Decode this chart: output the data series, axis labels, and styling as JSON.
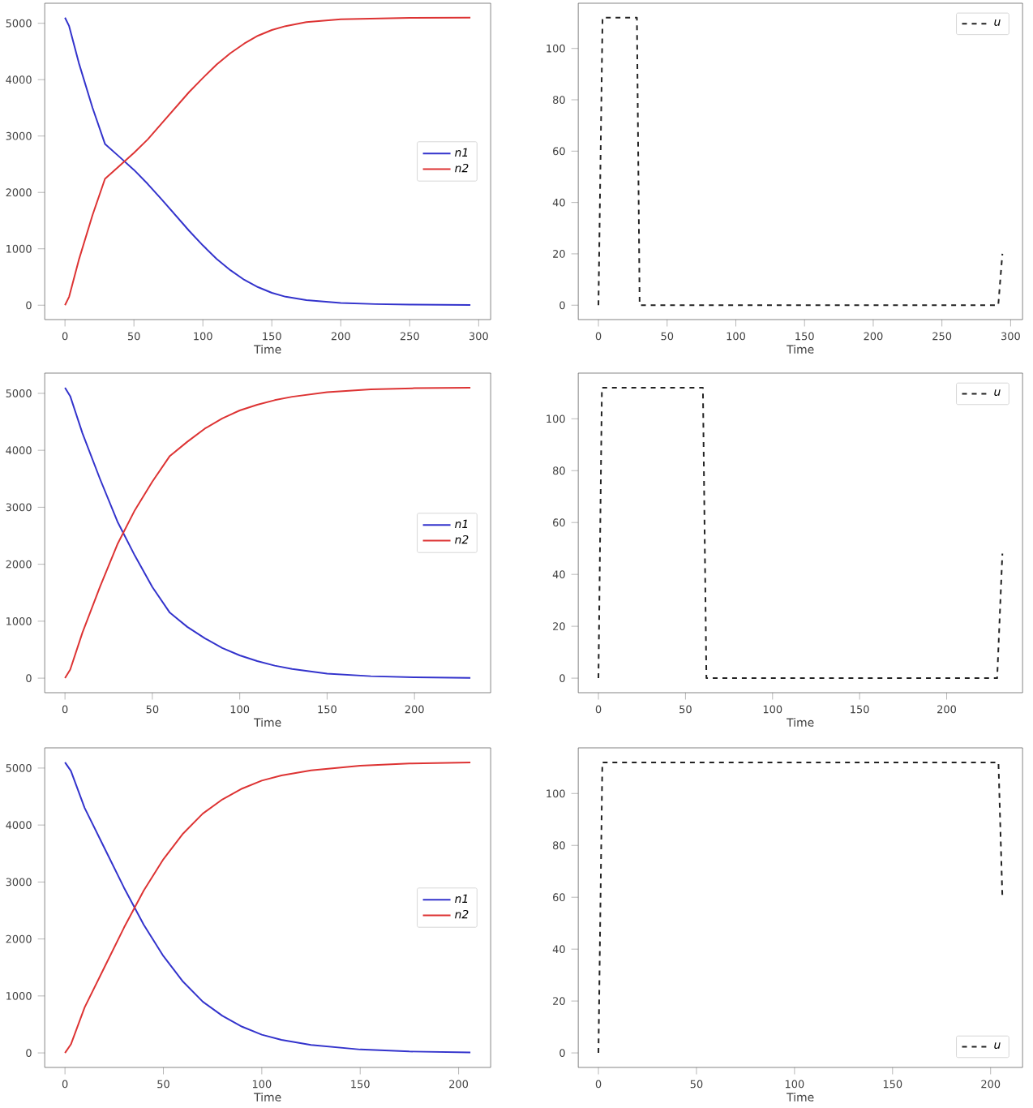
{
  "chart_data": [
    {
      "type": "line",
      "xlabel": "Time",
      "xlim": [
        -14.7,
        308.7
      ],
      "ylim": [
        -255,
        5355
      ],
      "xticks": [
        0,
        50,
        100,
        150,
        200,
        250,
        300
      ],
      "yticks": [
        0,
        1000,
        2000,
        3000,
        4000,
        5000
      ],
      "legend": "right",
      "series": [
        {
          "name": "n1",
          "color": "#3333cc",
          "line_style": "solid",
          "x": [
            0,
            3,
            10,
            20,
            29,
            40,
            50,
            60,
            70,
            80,
            90,
            100,
            110,
            120,
            130,
            140,
            150,
            160,
            175,
            200,
            225,
            250,
            294
          ],
          "values": [
            5100,
            4950,
            4300,
            3500,
            2860,
            2620,
            2400,
            2150,
            1880,
            1600,
            1320,
            1060,
            820,
            620,
            450,
            320,
            220,
            150,
            90,
            40,
            20,
            10,
            5
          ]
        },
        {
          "name": "n2",
          "color": "#dd3333",
          "line_style": "solid",
          "x": [
            0,
            3,
            10,
            20,
            29,
            40,
            50,
            60,
            70,
            80,
            90,
            100,
            110,
            120,
            130,
            140,
            150,
            160,
            175,
            200,
            250,
            294
          ],
          "values": [
            0,
            150,
            800,
            1600,
            2240,
            2480,
            2700,
            2940,
            3220,
            3500,
            3780,
            4030,
            4270,
            4470,
            4640,
            4780,
            4880,
            4950,
            5020,
            5070,
            5095,
            5100
          ]
        }
      ]
    },
    {
      "type": "line",
      "xlabel": "Time",
      "xlim": [
        -14.7,
        308.7
      ],
      "ylim": [
        -5.6,
        117.6
      ],
      "xticks": [
        0,
        50,
        100,
        150,
        200,
        250,
        300
      ],
      "yticks": [
        0,
        20,
        40,
        60,
        80,
        100
      ],
      "legend": "top right",
      "series": [
        {
          "name": "u",
          "color": "#222222",
          "line_style": "dashed",
          "x": [
            0,
            3,
            28,
            30,
            291,
            294
          ],
          "values": [
            0,
            112,
            112,
            0,
            0,
            20
          ]
        }
      ]
    },
    {
      "type": "line",
      "xlabel": "Time",
      "xlim": [
        -11.6,
        243.6
      ],
      "ylim": [
        -255,
        5355
      ],
      "xticks": [
        0,
        50,
        100,
        150,
        200
      ],
      "yticks": [
        0,
        1000,
        2000,
        3000,
        4000,
        5000
      ],
      "legend": "right",
      "series": [
        {
          "name": "n1",
          "color": "#3333cc",
          "line_style": "solid",
          "x": [
            0,
            3,
            10,
            20,
            30,
            40,
            50,
            60,
            70,
            80,
            90,
            100,
            110,
            120,
            130,
            150,
            175,
            200,
            232
          ],
          "values": [
            5100,
            4950,
            4300,
            3500,
            2750,
            2150,
            1600,
            1150,
            900,
            700,
            530,
            400,
            300,
            220,
            160,
            80,
            35,
            15,
            5
          ]
        },
        {
          "name": "n2",
          "color": "#dd3333",
          "line_style": "solid",
          "x": [
            0,
            3,
            10,
            20,
            30,
            40,
            50,
            60,
            70,
            80,
            90,
            100,
            110,
            120,
            130,
            150,
            175,
            200,
            232
          ],
          "values": [
            0,
            150,
            800,
            1600,
            2350,
            2950,
            3450,
            3900,
            4150,
            4380,
            4560,
            4700,
            4800,
            4880,
            4940,
            5020,
            5070,
            5090,
            5100
          ]
        }
      ]
    },
    {
      "type": "line",
      "xlabel": "Time",
      "xlim": [
        -11.6,
        243.6
      ],
      "ylim": [
        -5.6,
        117.6
      ],
      "xticks": [
        0,
        50,
        100,
        150,
        200
      ],
      "yticks": [
        0,
        20,
        40,
        60,
        80,
        100
      ],
      "legend": "top right",
      "series": [
        {
          "name": "u",
          "color": "#222222",
          "line_style": "dashed",
          "x": [
            0,
            2,
            60,
            62,
            229,
            232
          ],
          "values": [
            0,
            112,
            112,
            0,
            0,
            48
          ]
        }
      ]
    },
    {
      "type": "line",
      "xlabel": "Time",
      "xlim": [
        -10.3,
        216.3
      ],
      "ylim": [
        -255,
        5355
      ],
      "xticks": [
        0,
        50,
        100,
        150,
        200
      ],
      "yticks": [
        0,
        1000,
        2000,
        3000,
        4000,
        5000
      ],
      "legend": "right",
      "series": [
        {
          "name": "n1",
          "color": "#3333cc",
          "line_style": "solid",
          "x": [
            0,
            3,
            10,
            20,
            30,
            40,
            50,
            60,
            70,
            80,
            90,
            100,
            110,
            125,
            150,
            175,
            206
          ],
          "values": [
            5100,
            4950,
            4300,
            3600,
            2900,
            2250,
            1700,
            1250,
            900,
            650,
            460,
            320,
            230,
            140,
            60,
            25,
            10
          ]
        },
        {
          "name": "n2",
          "color": "#dd3333",
          "line_style": "solid",
          "x": [
            0,
            3,
            10,
            20,
            30,
            40,
            50,
            60,
            70,
            80,
            90,
            100,
            110,
            125,
            150,
            175,
            206
          ],
          "values": [
            0,
            150,
            800,
            1500,
            2200,
            2850,
            3400,
            3850,
            4200,
            4450,
            4640,
            4780,
            4870,
            4960,
            5040,
            5080,
            5100
          ]
        }
      ]
    },
    {
      "type": "line",
      "xlabel": "Time",
      "xlim": [
        -10.3,
        216.3
      ],
      "ylim": [
        -5.6,
        117.6
      ],
      "xticks": [
        0,
        50,
        100,
        150,
        200
      ],
      "yticks": [
        0,
        20,
        40,
        60,
        80,
        100
      ],
      "legend": "bottom right",
      "series": [
        {
          "name": "u",
          "color": "#222222",
          "line_style": "dashed",
          "x": [
            0,
            2,
            204,
            206
          ],
          "values": [
            0,
            112,
            112,
            60
          ]
        }
      ]
    }
  ]
}
